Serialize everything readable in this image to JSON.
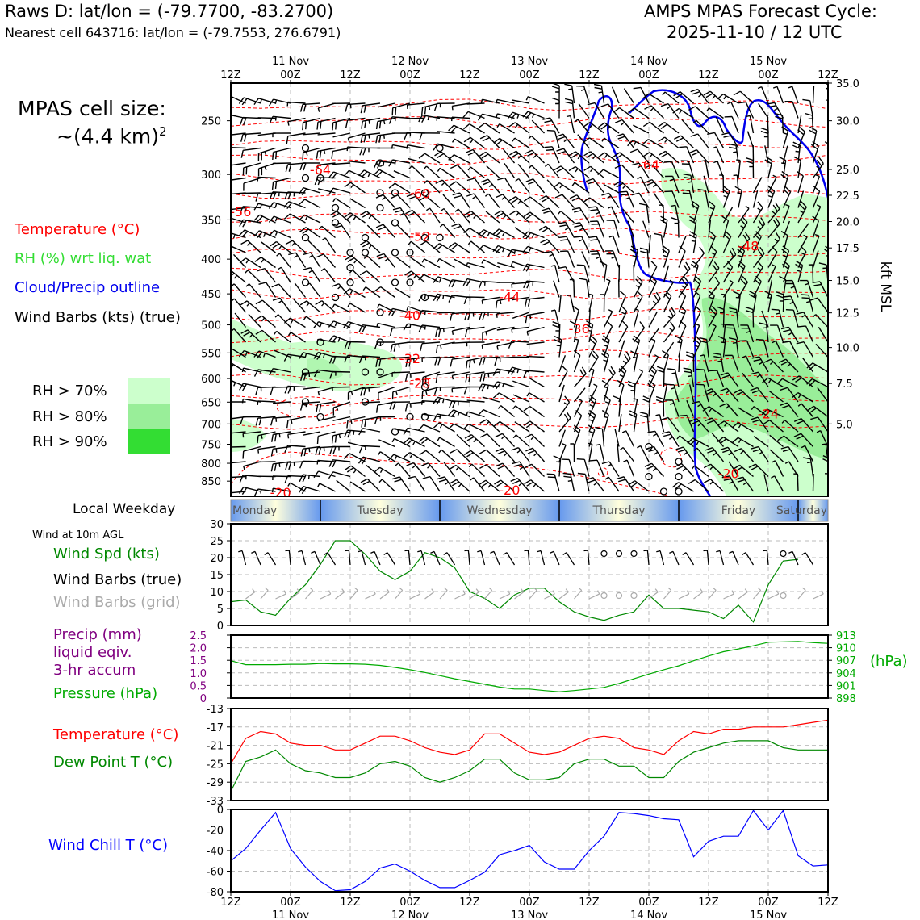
{
  "header": {
    "station_line": "Raws D: lat/lon = (-79.7700, -83.2700)",
    "nearest_line": "Nearest cell 643716: lat/lon = (-79.7553, 276.6791)",
    "product": "AMPS MPAS Forecast Cycle:",
    "cycle": "2025-11-10 / 12 UTC"
  },
  "cell_size": {
    "line1": "MPAS cell size:",
    "line2_prefix": "~(4.4 km)",
    "line2_sup": "2"
  },
  "legend": {
    "temperature": "Temperature (°C)",
    "rh": "RH (%) wrt liq. wat",
    "cloud": "Cloud/Precip outline",
    "barbs": "Wind Barbs (kts) (true)",
    "rh70": "RH > 70%",
    "rh80": "RH > 80%",
    "rh90": "RH > 90%"
  },
  "colors": {
    "temperature": "#ff0000",
    "rh_text": "#33dd33",
    "cloud": "#0000ee",
    "rh70": "#ccffcc",
    "rh80": "#99ee99",
    "rh90": "#33dd33",
    "pressure": "#00aa00",
    "precip": "#800080",
    "dewpoint": "#008800",
    "windchill": "#0000ff",
    "grid_barbs": "#aaaaaa",
    "day_gradient_mid": "#ffffdd",
    "day_gradient_edge": "#6699ee"
  },
  "time_axis": {
    "top_ticks": [
      "12Z",
      "00Z",
      "12Z",
      "00Z",
      "12Z",
      "00Z",
      "12Z",
      "00Z",
      "12Z",
      "00Z",
      "12Z"
    ],
    "dates": [
      "11 Nov",
      "12 Nov",
      "13 Nov",
      "14 Nov",
      "15 Nov"
    ],
    "days": [
      "Monday",
      "Tuesday",
      "Wednesday",
      "Thursday",
      "Friday",
      "Saturday"
    ],
    "day_bar_label": "Local Weekday"
  },
  "profile": {
    "pressure_levels": [
      250,
      300,
      350,
      400,
      450,
      500,
      550,
      600,
      650,
      700,
      750,
      800,
      850
    ],
    "kft_labels": [
      "35.0",
      "30.0",
      "25.0",
      "22.5",
      "20.0",
      "17.5",
      "15.0",
      "12.5",
      "10.0",
      "7.5",
      "5.0"
    ],
    "kft_axis_label": "kft MSL",
    "temp_labels": [
      {
        "text": "-64",
        "t": 9,
        "p": 295
      },
      {
        "text": "-64",
        "t": 42,
        "p": 290
      },
      {
        "text": "-60",
        "t": 19,
        "p": 320
      },
      {
        "text": "-56",
        "t": 1,
        "p": 340
      },
      {
        "text": "-52",
        "t": 19,
        "p": 370
      },
      {
        "text": "-48",
        "t": 52,
        "p": 382
      },
      {
        "text": "-44",
        "t": 28,
        "p": 454
      },
      {
        "text": "-40",
        "t": 18,
        "p": 484
      },
      {
        "text": "-36",
        "t": 35,
        "p": 506
      },
      {
        "text": "-32",
        "t": 18,
        "p": 560
      },
      {
        "text": "-28",
        "t": 19,
        "p": 609
      },
      {
        "text": "-24",
        "t": 54,
        "p": 676
      },
      {
        "text": "-20",
        "t": 50,
        "p": 828
      },
      {
        "text": "-20",
        "t": 5,
        "p": 883
      },
      {
        "text": "-20",
        "t": 28,
        "p": 875
      }
    ]
  },
  "wind_panel": {
    "title": "Wind at 10m AGL",
    "spd_label": "Wind Spd (kts)",
    "barb_true_label": "Wind Barbs (true)",
    "barb_grid_label": "Wind Barbs (grid)",
    "yticks": [
      "30",
      "25",
      "20",
      "15",
      "10",
      "5",
      "0"
    ]
  },
  "precip_panel": {
    "precip_label": "Precip (mm)",
    "liquid_label": "liquid eqiv.",
    "accum_label": "3-hr accum",
    "pressure_label": "Pressure (hPa)",
    "left_ticks": [
      "2.5",
      "2.0",
      "1.5",
      "1.0",
      "0.5",
      "0"
    ],
    "right_ticks": [
      "913",
      "910",
      "907",
      "904",
      "901",
      "898"
    ],
    "right_unit": "(hPa)"
  },
  "temp_panel": {
    "temp_label": "Temperature (°C)",
    "dew_label": "Dew Point T (°C)",
    "yticks": [
      "-13",
      "-17",
      "-21",
      "-25",
      "-29",
      "-33"
    ]
  },
  "chill_panel": {
    "label": "Wind Chill T (°C)",
    "yticks": [
      "0",
      "-20",
      "-40",
      "-60",
      "-80"
    ]
  },
  "chart_data": {
    "type": "line",
    "title": "AMPS MPAS Forecast Cycle: 2025-11-10 / 12 UTC",
    "x_unit": "forecast hour (3-hourly, 0 = 10 Nov 12Z, 120 = 15 Nov 12Z)",
    "x": [
      0,
      3,
      6,
      9,
      12,
      15,
      18,
      21,
      24,
      27,
      30,
      33,
      36,
      39,
      42,
      45,
      48,
      51,
      54,
      57,
      60,
      63,
      66,
      69,
      72,
      75,
      78,
      81,
      84,
      87,
      90,
      93,
      96,
      99,
      102,
      105,
      108,
      111,
      114,
      117,
      120
    ],
    "series": [
      {
        "name": "Wind Spd (kts)",
        "ylim": [
          0,
          30
        ],
        "values": [
          7,
          7.5,
          4,
          3,
          8,
          12,
          18,
          25,
          25,
          21,
          16,
          13.5,
          16,
          21.5,
          20,
          17,
          10,
          8,
          5,
          9,
          11,
          11,
          7,
          4,
          2.5,
          1.5,
          3,
          4,
          9,
          5,
          5,
          4.5,
          4,
          2,
          6,
          1,
          12,
          19,
          19.5,
          null,
          null
        ]
      },
      {
        "name": "Pressure (hPa)",
        "ylim": [
          898,
          914
        ],
        "values": [
          907.5,
          906.5,
          906.5,
          906.5,
          906.6,
          906.6,
          906.8,
          906.7,
          906.7,
          906.6,
          906.3,
          905.8,
          905.2,
          904.5,
          903.7,
          902.9,
          902.2,
          901.5,
          900.8,
          900.3,
          900.3,
          899.9,
          899.6,
          899.9,
          900.3,
          900.7,
          901.7,
          902.9,
          904.1,
          905.2,
          906.2,
          907.5,
          908.7,
          909.8,
          910.5,
          911.3,
          912.2,
          912.3,
          912.4,
          912.1,
          911.9
        ]
      },
      {
        "name": "Temperature (°C)",
        "ylim": [
          -33,
          -13
        ],
        "values": [
          -25,
          -19.5,
          -18,
          -18.5,
          -20.5,
          -21,
          -21,
          -22,
          -22,
          -20.5,
          -19,
          -19,
          -20,
          -21.5,
          -22.5,
          -23,
          -22,
          -18.5,
          -18.5,
          -20.5,
          -22.5,
          -23,
          -22.5,
          -21,
          -19.5,
          -19,
          -19.5,
          -21.5,
          -22,
          -23,
          -20,
          -18,
          -18.5,
          -17.5,
          -17.5,
          -17,
          -17,
          -17,
          -16.5,
          -16,
          -15.5
        ]
      },
      {
        "name": "Dew Point T (°C)",
        "ylim": [
          -33,
          -13
        ],
        "values": [
          -31,
          -24.5,
          -23.5,
          -22,
          -25,
          -26.5,
          -27,
          -28,
          -28,
          -27,
          -25,
          -24.5,
          -25.5,
          -28,
          -29,
          -28,
          -26.5,
          -24,
          -24,
          -27,
          -28.5,
          -28.5,
          -28,
          -25,
          -24,
          -24,
          -25.5,
          -25.5,
          -28,
          -28,
          -24.5,
          -22.5,
          -21.5,
          -20.5,
          -20,
          -20,
          -20,
          -21.5,
          -22,
          -22,
          -22
        ]
      },
      {
        "name": "Wind Chill T (°C)",
        "ylim": [
          -80,
          0
        ],
        "values": [
          -50,
          -38,
          -20,
          -3,
          -38,
          -56,
          -70,
          -79,
          -78,
          -70,
          -57,
          -53,
          -60,
          -69,
          -76,
          -76,
          -69,
          -61,
          -44,
          -40,
          -35,
          -51,
          -58,
          -58,
          -40,
          -26,
          -3,
          -4,
          -6,
          -9,
          -10,
          -46,
          -31,
          -26,
          -26,
          -1,
          -20,
          -1,
          -45,
          -55,
          -54
        ]
      },
      {
        "name": "Precip (mm)",
        "ylim": [
          0,
          2.5
        ],
        "values": [
          0,
          0,
          0,
          0,
          0,
          0,
          0,
          0,
          0,
          0,
          0,
          0,
          0,
          0,
          0,
          0,
          0,
          0,
          0,
          0,
          0,
          0,
          0,
          0,
          0,
          0,
          0,
          0,
          0,
          0,
          0,
          0,
          0,
          0,
          0,
          0,
          0,
          0,
          0,
          0,
          0
        ]
      }
    ]
  }
}
